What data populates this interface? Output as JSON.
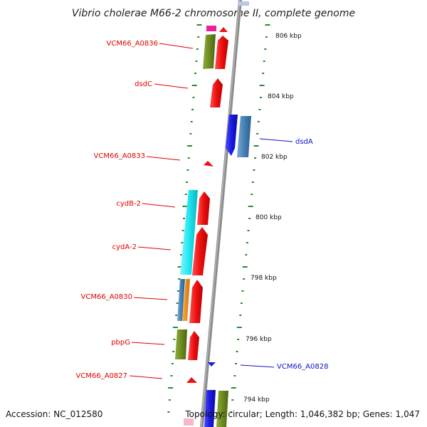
{
  "title": "Vibrio cholerae M66-2 chromosome II, complete genome",
  "accession": "Accession: NC_012580",
  "topology": "Topology: circular; Length: 1,046,382 bp; Genes: 1,047",
  "kbp_labels": [
    "806 kbp",
    "804 kbp",
    "802 kbp",
    "800 kbp",
    "798 kbp",
    "796 kbp",
    "794 kbp"
  ],
  "gene_labels": [
    {
      "text": "VCM66_A0836",
      "strand": "plus"
    },
    {
      "text": "dsdC",
      "strand": "plus"
    },
    {
      "text": "dsdA",
      "strand": "minus"
    },
    {
      "text": "VCM66_A0833",
      "strand": "plus"
    },
    {
      "text": "cydB-2",
      "strand": "plus"
    },
    {
      "text": "cydA-2",
      "strand": "plus"
    },
    {
      "text": "VCM66_A0830",
      "strand": "plus"
    },
    {
      "text": "pbpG",
      "strand": "plus"
    },
    {
      "text": "VCM66_A0828",
      "strand": "minus"
    },
    {
      "text": "VCM66_A0827",
      "strand": "plus"
    }
  ],
  "colors": {
    "backbone": "#8c8c8c",
    "tick": "#2a8a2a",
    "plus_label": "#e00000",
    "minus_label": "#1010c8",
    "red_gene": "#ee1111",
    "olive_gene": "#6e8b22",
    "cyan_gene": "#20e6f0",
    "blue_gene": "#1a1ae0",
    "steel_gene": "#4682b4",
    "orange_gene": "#f08c00",
    "pink_gene": "#e8209a"
  }
}
